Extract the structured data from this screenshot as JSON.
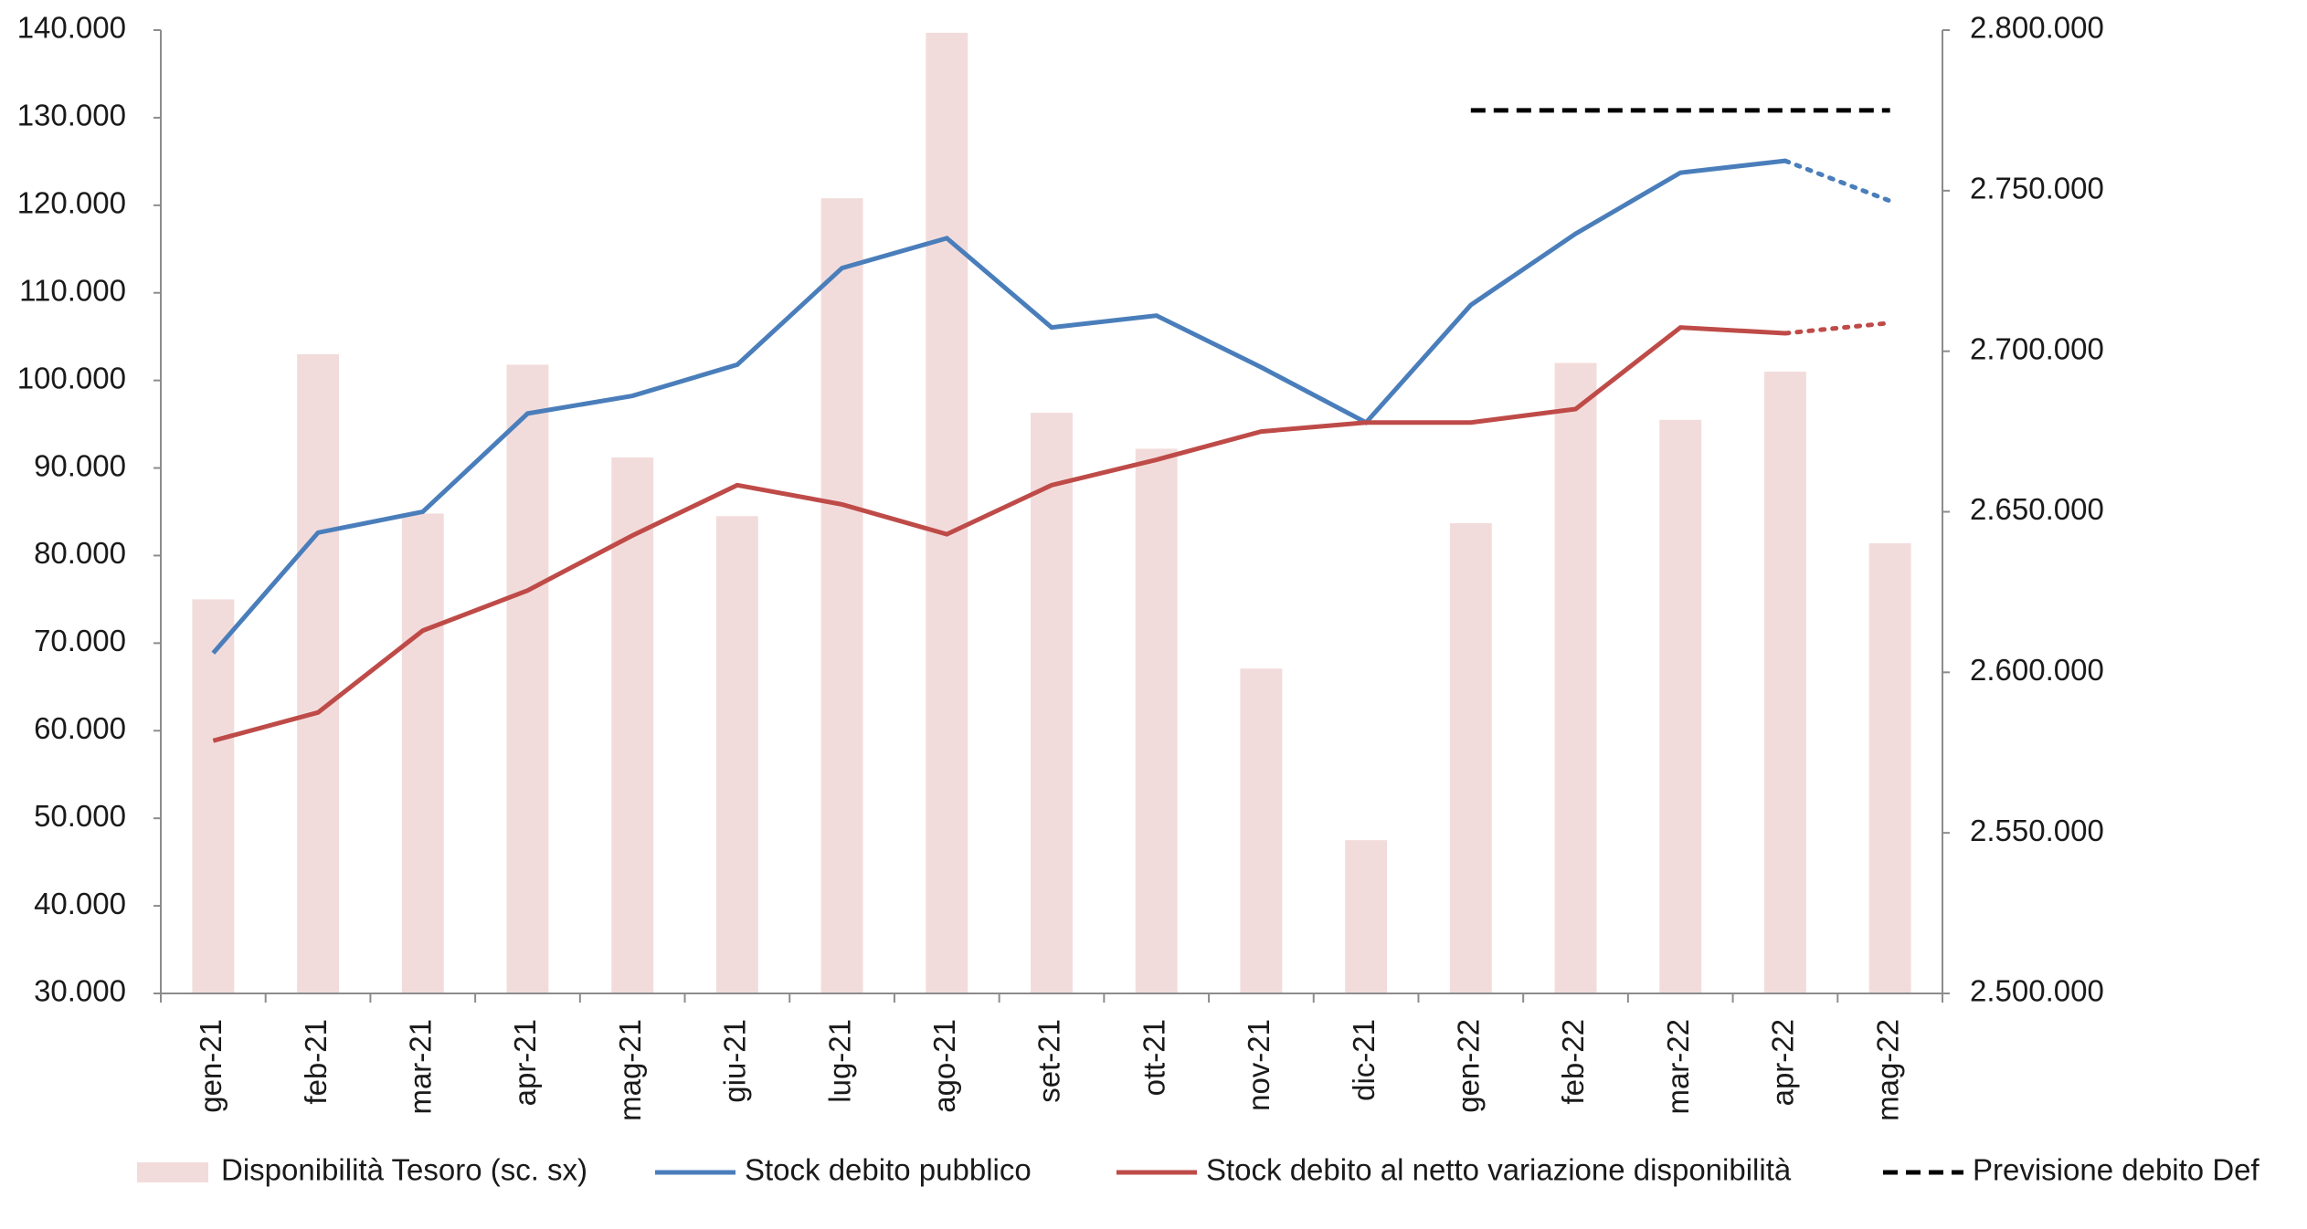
{
  "chart_data": {
    "type": "bar_line",
    "categories": [
      "gen-21",
      "feb-21",
      "mar-21",
      "apr-21",
      "mag-21",
      "giu-21",
      "lug-21",
      "ago-21",
      "set-21",
      "ott-21",
      "nov-21",
      "dic-21",
      "gen-22",
      "feb-22",
      "mar-22",
      "apr-22",
      "mag-22"
    ],
    "series": [
      {
        "name": "Disponibilità Tesoro (sc. sx)",
        "type": "bar",
        "color": "#f2dcdb",
        "axis": "y",
        "values": [
          75000,
          103000,
          84800,
          101800,
          91200,
          84500,
          120800,
          139700,
          96300,
          92200,
          67100,
          47500,
          83700,
          102000,
          95500,
          101000,
          81400
        ]
      },
      {
        "name": "Stock debito pubblico",
        "type": "line",
        "color": "#4a7ebb",
        "axis": "y2",
        "dotted_from_index": 15,
        "values": [
          2606000,
          2643500,
          2650000,
          2680600,
          2686100,
          2695800,
          2725900,
          2735200,
          2707400,
          2711100,
          2695000,
          2677800,
          2714400,
          2736600,
          2755600,
          2759300,
          2746800
        ]
      },
      {
        "name": "Stock debito al netto variazione disponibilità",
        "type": "line",
        "color": "#be4b48",
        "axis": "y2",
        "dotted_from_index": 15,
        "values": [
          2578700,
          2587500,
          2613000,
          2625500,
          2642600,
          2658300,
          2652300,
          2643000,
          2658300,
          2666200,
          2675000,
          2677800,
          2677800,
          2682000,
          2707400,
          2705600,
          2708800
        ]
      },
      {
        "name": "Previsione debito Def",
        "type": "line",
        "color": "#000000",
        "axis": "y2",
        "dashed": true,
        "values": [
          null,
          null,
          null,
          null,
          null,
          null,
          null,
          null,
          null,
          null,
          null,
          null,
          2775000,
          2775000,
          2775000,
          2775000,
          2775000
        ]
      }
    ],
    "ylim": [
      30000,
      140000
    ],
    "yticks": [
      {
        "value": 30000,
        "label": "30.000"
      },
      {
        "value": 40000,
        "label": "40.000"
      },
      {
        "value": 50000,
        "label": "50.000"
      },
      {
        "value": 60000,
        "label": "60.000"
      },
      {
        "value": 70000,
        "label": "70.000"
      },
      {
        "value": 80000,
        "label": "80.000"
      },
      {
        "value": 90000,
        "label": "90.000"
      },
      {
        "value": 100000,
        "label": "100.000"
      },
      {
        "value": 110000,
        "label": "110.000"
      },
      {
        "value": 120000,
        "label": "120.000"
      },
      {
        "value": 130000,
        "label": "130.000"
      },
      {
        "value": 140000,
        "label": "140.000"
      }
    ],
    "y2lim": [
      2500000,
      2800000
    ],
    "y2ticks": [
      {
        "value": 2500000,
        "label": "2.500.000"
      },
      {
        "value": 2550000,
        "label": "2.550.000"
      },
      {
        "value": 2600000,
        "label": "2.600.000"
      },
      {
        "value": 2650000,
        "label": "2.650.000"
      },
      {
        "value": 2700000,
        "label": "2.700.000"
      },
      {
        "value": 2750000,
        "label": "2.750.000"
      },
      {
        "value": 2800000,
        "label": "2.800.000"
      }
    ],
    "grid": false,
    "legend": "bottom"
  }
}
